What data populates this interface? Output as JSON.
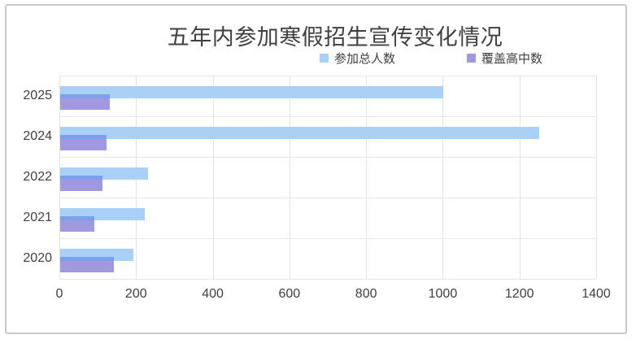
{
  "title": "五年内参加寒假招生宣传变化情况",
  "legend": [
    {
      "label": "参加总人数",
      "color": "#abd0f5"
    },
    {
      "label": "覆盖高中数",
      "color": "#a199df"
    }
  ],
  "colors": {
    "series_total": "#abd0f5",
    "series_coverage": "#a199df",
    "overlap_stripe": "#7ca0ea",
    "gridline": "#e3e3e3",
    "card_border": "#c9c9c9",
    "text": "#404040"
  },
  "chart_data": {
    "type": "bar",
    "orientation": "horizontal",
    "title": "五年内参加寒假招生宣传变化情况",
    "categories": [
      "2025",
      "2024",
      "2022",
      "2021",
      "2020"
    ],
    "series": [
      {
        "name": "参加总人数",
        "color": "#abd0f5",
        "values": [
          1000,
          1250,
          230,
          220,
          190
        ]
      },
      {
        "name": "覆盖高中数",
        "color": "#a199df",
        "values": [
          130,
          120,
          110,
          90,
          140
        ]
      }
    ],
    "overlap_color": "#7ca0ea",
    "xlabel": "",
    "ylabel": "",
    "xlim": [
      0,
      1400
    ],
    "x_ticks": [
      0,
      200,
      400,
      600,
      800,
      1000,
      1200,
      1400
    ],
    "grid": true,
    "legend_position": "top-center"
  }
}
